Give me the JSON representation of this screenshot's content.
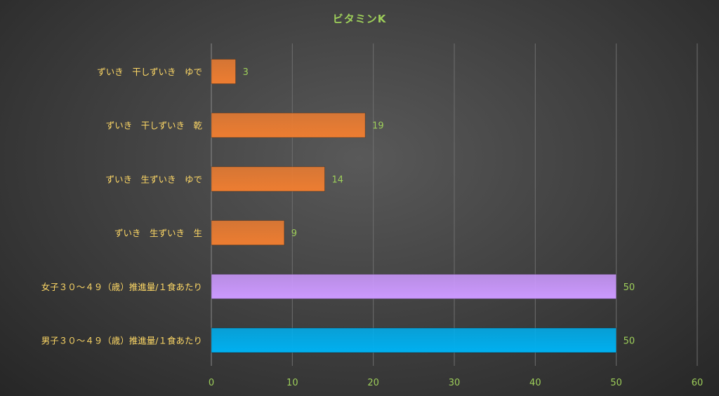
{
  "chart_data": {
    "type": "bar",
    "orientation": "horizontal",
    "title": "ビタミンK",
    "categories": [
      "ずいき　干しずいき　ゆで",
      "ずいき　干しずいき　乾",
      "ずいき　生ずいき　ゆで",
      "ずいき　生ずいき　生",
      "女子３０～４９（歳）推進量/１食あたり",
      "男子３０～４９（歳）推進量/１食あたり"
    ],
    "values": [
      3,
      19,
      14,
      9,
      50,
      50
    ],
    "xlim": [
      0,
      60
    ],
    "xticks": [
      0,
      10,
      20,
      30,
      40,
      50,
      60
    ],
    "grid": "vertical",
    "legend": "none",
    "colors": {
      "food_bars": "#ed7d31",
      "female_bar": "#cc99ff",
      "male_bar": "#00b0f0",
      "category_labels": "#ffd966",
      "value_labels": "#9ecf5a",
      "tick_labels": "#9ecf5a",
      "title": "#9ecf5a",
      "gridlines": "#6e6e6e"
    },
    "bar_colors": [
      "#ed7d31",
      "#ed7d31",
      "#ed7d31",
      "#ed7d31",
      "#cc99ff",
      "#00b0f0"
    ]
  }
}
